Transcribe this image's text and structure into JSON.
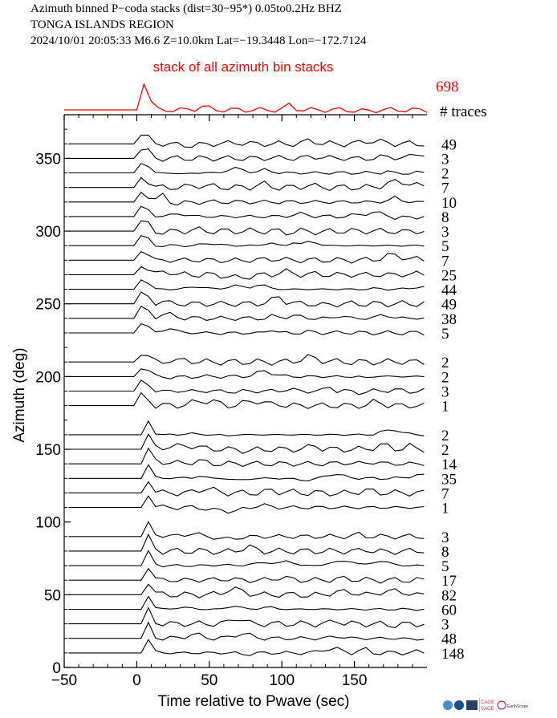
{
  "header": {
    "line1": "Azimuth binned P−coda stacks (dist=30−95*)  0.05to0.2Hz  BHZ",
    "line2": "TONGA ISLANDS REGION",
    "line3": "2024/10/01  20:05:33  M6.6  Z=10.0km Lat=−19.3448 Lon=−172.7124"
  },
  "colors": {
    "summary": "#ff0000",
    "trace": "#000000",
    "axis": "#000000"
  },
  "logos": [
    "noaa-logo",
    "nsf-logo",
    "cage-sage-logo",
    "earthscope-logo"
  ],
  "logo_text": {
    "cage": "CAGE",
    "sage": "SAGE",
    "earthscope": "EarthScope"
  },
  "chart_data": {
    "type": "line",
    "xlabel": "Time relative to Pwave (sec)",
    "ylabel": "Azimuth (deg)",
    "xlim": [
      -50,
      200
    ],
    "ylim": [
      0,
      380
    ],
    "x_ticks": [
      -50,
      0,
      50,
      100,
      150
    ],
    "x_tick_labels": [
      "−50",
      "0",
      "50",
      "100",
      "150"
    ],
    "y_ticks": [
      0,
      50,
      100,
      150,
      200,
      250,
      300,
      350
    ],
    "summary": {
      "label": "stack of all azimuth bin stacks",
      "trace_count": "698",
      "count_header": "# traces"
    },
    "bins": [
      {
        "azimuth": 360,
        "traces": "49"
      },
      {
        "azimuth": 350,
        "traces": "3"
      },
      {
        "azimuth": 340,
        "traces": "2"
      },
      {
        "azimuth": 330,
        "traces": "7"
      },
      {
        "azimuth": 320,
        "traces": "10"
      },
      {
        "azimuth": 310,
        "traces": "8"
      },
      {
        "azimuth": 300,
        "traces": "3"
      },
      {
        "azimuth": 290,
        "traces": "5"
      },
      {
        "azimuth": 280,
        "traces": "7"
      },
      {
        "azimuth": 270,
        "traces": "25"
      },
      {
        "azimuth": 260,
        "traces": "44"
      },
      {
        "azimuth": 250,
        "traces": "49"
      },
      {
        "azimuth": 240,
        "traces": "38"
      },
      {
        "azimuth": 230,
        "traces": "5"
      },
      {
        "azimuth": 210,
        "traces": "2"
      },
      {
        "azimuth": 200,
        "traces": "2"
      },
      {
        "azimuth": 190,
        "traces": "3"
      },
      {
        "azimuth": 180,
        "traces": "1"
      },
      {
        "azimuth": 160,
        "traces": "2"
      },
      {
        "azimuth": 150,
        "traces": "2"
      },
      {
        "azimuth": 140,
        "traces": "14"
      },
      {
        "azimuth": 130,
        "traces": "35"
      },
      {
        "azimuth": 120,
        "traces": "7"
      },
      {
        "azimuth": 110,
        "traces": "1"
      },
      {
        "azimuth": 90,
        "traces": "3"
      },
      {
        "azimuth": 80,
        "traces": "8"
      },
      {
        "azimuth": 70,
        "traces": "5"
      },
      {
        "azimuth": 60,
        "traces": "17"
      },
      {
        "azimuth": 50,
        "traces": "82"
      },
      {
        "azimuth": 40,
        "traces": "60"
      },
      {
        "azimuth": 30,
        "traces": "3"
      },
      {
        "azimuth": 20,
        "traces": "48"
      },
      {
        "azimuth": 10,
        "traces": "148"
      }
    ]
  }
}
